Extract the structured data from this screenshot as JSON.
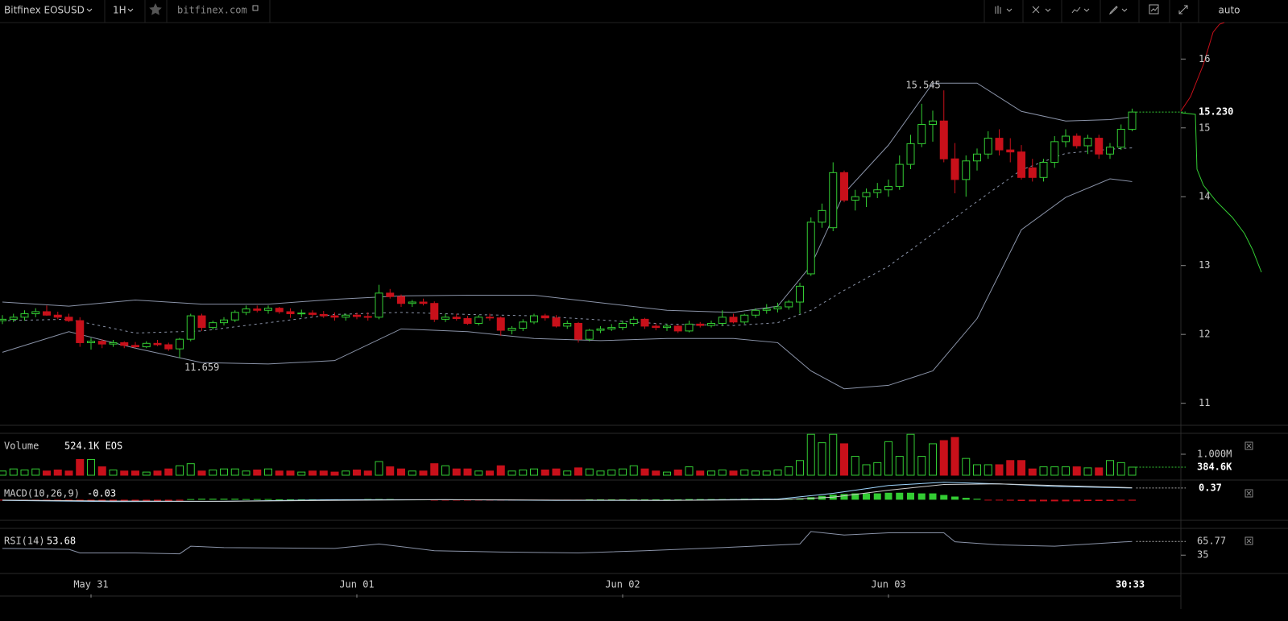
{
  "toolbar": {
    "symbol": "Bitfinex EOSUSD",
    "interval": "1H",
    "site": "bitfinex.com",
    "scale_mode": "auto"
  },
  "chart_data": {
    "type": "candlestick",
    "categories": [
      null,
      null,
      null,
      null,
      null,
      null,
      null,
      null,
      "May 31",
      null,
      null,
      null,
      null,
      null,
      null,
      null,
      null,
      null,
      null,
      null,
      null,
      null,
      null,
      null,
      null,
      null,
      null,
      null,
      null,
      null,
      null,
      null,
      "Jun 01",
      null,
      null,
      null,
      null,
      null,
      null,
      null,
      null,
      null,
      null,
      null,
      null,
      null,
      null,
      null,
      null,
      null,
      null,
      null,
      null,
      null,
      null,
      null,
      "Jun 02",
      null,
      null,
      null,
      null,
      null,
      null,
      null,
      null,
      null,
      null,
      null,
      null,
      null,
      null,
      null,
      null,
      null,
      null,
      null,
      null,
      null,
      null,
      null,
      "Jun 03",
      null,
      null,
      null,
      null,
      null,
      null,
      null,
      null,
      null,
      null,
      null,
      null,
      null,
      null,
      null,
      null,
      null,
      null,
      null,
      null,
      null,
      null
    ],
    "ohlc": [
      [
        12.2,
        12.28,
        12.15,
        12.22
      ],
      [
        12.22,
        12.3,
        12.18,
        12.25
      ],
      [
        12.25,
        12.35,
        12.2,
        12.3
      ],
      [
        12.3,
        12.38,
        12.25,
        12.33
      ],
      [
        12.33,
        12.42,
        12.27,
        12.28
      ],
      [
        12.28,
        12.33,
        12.22,
        12.25
      ],
      [
        12.25,
        12.3,
        12.18,
        12.2
      ],
      [
        12.2,
        12.25,
        11.82,
        11.88
      ],
      [
        11.88,
        11.95,
        11.78,
        11.9
      ],
      [
        11.9,
        11.93,
        11.8,
        11.86
      ],
      [
        11.86,
        11.92,
        11.82,
        11.88
      ],
      [
        11.88,
        11.9,
        11.8,
        11.84
      ],
      [
        11.84,
        11.89,
        11.8,
        11.82
      ],
      [
        11.82,
        11.9,
        11.8,
        11.87
      ],
      [
        11.87,
        11.92,
        11.83,
        11.85
      ],
      [
        11.85,
        11.88,
        11.76,
        11.79
      ],
      [
        11.79,
        11.95,
        11.659,
        11.93
      ],
      [
        11.93,
        12.3,
        11.9,
        12.27
      ],
      [
        12.27,
        12.3,
        12.05,
        12.1
      ],
      [
        12.1,
        12.2,
        12.07,
        12.17
      ],
      [
        12.17,
        12.25,
        12.13,
        12.21
      ],
      [
        12.21,
        12.35,
        12.18,
        12.32
      ],
      [
        12.32,
        12.42,
        12.28,
        12.37
      ],
      [
        12.37,
        12.42,
        12.32,
        12.35
      ],
      [
        12.35,
        12.42,
        12.3,
        12.38
      ],
      [
        12.38,
        12.4,
        12.3,
        12.33
      ],
      [
        12.33,
        12.38,
        12.24,
        12.3
      ],
      [
        12.3,
        12.36,
        12.25,
        12.31
      ],
      [
        12.31,
        12.35,
        12.26,
        12.29
      ],
      [
        12.29,
        12.34,
        12.24,
        12.27
      ],
      [
        12.27,
        12.32,
        12.2,
        12.25
      ],
      [
        12.25,
        12.3,
        12.2,
        12.28
      ],
      [
        12.28,
        12.32,
        12.22,
        12.26
      ],
      [
        12.26,
        12.32,
        12.2,
        12.25
      ],
      [
        12.25,
        12.72,
        12.22,
        12.6
      ],
      [
        12.6,
        12.66,
        12.52,
        12.55
      ],
      [
        12.55,
        12.58,
        12.4,
        12.45
      ],
      [
        12.45,
        12.5,
        12.4,
        12.47
      ],
      [
        12.47,
        12.52,
        12.42,
        12.45
      ],
      [
        12.45,
        12.48,
        12.18,
        12.22
      ],
      [
        12.22,
        12.3,
        12.18,
        12.25
      ],
      [
        12.25,
        12.3,
        12.2,
        12.23
      ],
      [
        12.23,
        12.27,
        12.14,
        12.16
      ],
      [
        12.16,
        12.28,
        12.13,
        12.25
      ],
      [
        12.25,
        12.3,
        12.2,
        12.24
      ],
      [
        12.24,
        12.26,
        11.98,
        12.06
      ],
      [
        12.06,
        12.12,
        12.0,
        12.09
      ],
      [
        12.09,
        12.22,
        12.05,
        12.18
      ],
      [
        12.18,
        12.3,
        12.15,
        12.27
      ],
      [
        12.27,
        12.3,
        12.2,
        12.24
      ],
      [
        12.24,
        12.28,
        12.1,
        12.12
      ],
      [
        12.12,
        12.2,
        12.08,
        12.16
      ],
      [
        12.16,
        12.18,
        11.88,
        11.93
      ],
      [
        11.93,
        12.08,
        11.9,
        12.06
      ],
      [
        12.06,
        12.12,
        12.02,
        12.08
      ],
      [
        12.08,
        12.15,
        12.05,
        12.1
      ],
      [
        12.1,
        12.2,
        12.06,
        12.16
      ],
      [
        12.16,
        12.26,
        12.12,
        12.22
      ],
      [
        12.22,
        12.24,
        12.08,
        12.12
      ],
      [
        12.12,
        12.16,
        12.06,
        12.1
      ],
      [
        12.1,
        12.15,
        12.05,
        12.12
      ],
      [
        12.12,
        12.14,
        12.02,
        12.05
      ],
      [
        12.05,
        12.2,
        12.03,
        12.15
      ],
      [
        12.15,
        12.18,
        12.1,
        12.13
      ],
      [
        12.13,
        12.2,
        12.1,
        12.16
      ],
      [
        12.16,
        12.35,
        12.12,
        12.25
      ],
      [
        12.25,
        12.3,
        12.16,
        12.18
      ],
      [
        12.18,
        12.3,
        12.15,
        12.28
      ],
      [
        12.28,
        12.38,
        12.24,
        12.35
      ],
      [
        12.35,
        12.44,
        12.3,
        12.37
      ],
      [
        12.37,
        12.46,
        12.32,
        12.4
      ],
      [
        12.4,
        12.5,
        12.36,
        12.47
      ],
      [
        12.47,
        12.75,
        12.3,
        12.7
      ],
      [
        12.88,
        13.7,
        12.85,
        13.63
      ],
      [
        13.63,
        13.9,
        13.55,
        13.8
      ],
      [
        13.55,
        14.5,
        13.5,
        14.35
      ],
      [
        14.35,
        14.38,
        13.92,
        13.95
      ],
      [
        13.95,
        14.1,
        13.8,
        14.0
      ],
      [
        14.0,
        14.12,
        13.85,
        14.06
      ],
      [
        14.06,
        14.2,
        13.98,
        14.1
      ],
      [
        14.1,
        14.25,
        14.0,
        14.15
      ],
      [
        14.15,
        14.6,
        14.1,
        14.47
      ],
      [
        14.47,
        14.9,
        14.4,
        14.77
      ],
      [
        14.77,
        15.35,
        14.72,
        15.05
      ],
      [
        15.05,
        15.25,
        14.8,
        15.1
      ],
      [
        15.1,
        15.545,
        14.5,
        14.55
      ],
      [
        14.55,
        14.78,
        14.05,
        14.25
      ],
      [
        14.25,
        14.6,
        14.0,
        14.52
      ],
      [
        14.52,
        14.7,
        14.38,
        14.62
      ],
      [
        14.62,
        14.95,
        14.55,
        14.85
      ],
      [
        14.85,
        14.98,
        14.6,
        14.68
      ],
      [
        14.68,
        14.85,
        14.5,
        14.65
      ],
      [
        14.65,
        14.75,
        14.25,
        14.28
      ],
      [
        14.42,
        14.55,
        14.22,
        14.28
      ],
      [
        14.28,
        14.55,
        14.22,
        14.5
      ],
      [
        14.5,
        14.88,
        14.42,
        14.8
      ],
      [
        14.8,
        14.98,
        14.72,
        14.88
      ],
      [
        14.88,
        14.92,
        14.7,
        14.74
      ],
      [
        14.74,
        14.9,
        14.62,
        14.85
      ],
      [
        14.85,
        14.9,
        14.55,
        14.62
      ],
      [
        14.62,
        14.78,
        14.55,
        14.72
      ],
      [
        14.72,
        15.05,
        14.68,
        14.98
      ],
      [
        14.98,
        15.28,
        14.95,
        15.23
      ]
    ],
    "up_color": "#33cc33",
    "down_color": "#c8101a",
    "ylim": [
      10.68,
      16.53
    ],
    "yticks": [
      11,
      12,
      13,
      14,
      15,
      16
    ],
    "high_label": "15.545",
    "low_label": "11.659",
    "last_price": {
      "value": 15.23,
      "label": "15.230"
    },
    "bands": {
      "x": [
        0,
        6,
        12,
        18,
        24,
        30,
        36,
        42,
        48,
        54,
        60,
        66,
        70,
        73,
        76,
        80,
        84,
        88,
        92,
        96,
        100,
        102
      ],
      "upper": [
        12.47,
        12.41,
        12.5,
        12.44,
        12.44,
        12.51,
        12.56,
        12.57,
        12.57,
        12.46,
        12.35,
        12.32,
        12.41,
        13.0,
        14.05,
        14.75,
        15.65,
        15.65,
        15.24,
        15.1,
        15.12,
        15.16
      ],
      "mid": [
        12.2,
        12.22,
        12.02,
        12.05,
        12.17,
        12.29,
        12.32,
        12.29,
        12.27,
        12.21,
        12.15,
        12.13,
        12.17,
        12.35,
        12.64,
        12.99,
        13.46,
        13.93,
        14.39,
        14.63,
        14.69,
        14.71
      ],
      "lower": [
        11.74,
        12.04,
        11.8,
        11.59,
        11.57,
        11.62,
        12.08,
        12.04,
        11.94,
        11.91,
        11.94,
        11.94,
        11.88,
        11.47,
        11.21,
        11.26,
        11.47,
        12.23,
        13.52,
        13.99,
        14.26,
        14.22
      ]
    },
    "volume": {
      "title": "Volume",
      "current": "524.1K EOS",
      "values": [
        200000,
        300000,
        250000,
        300000,
        200000,
        250000,
        200000,
        750000,
        750000,
        400000,
        250000,
        200000,
        200000,
        150000,
        200000,
        300000,
        450000,
        550000,
        200000,
        250000,
        300000,
        300000,
        200000,
        250000,
        300000,
        200000,
        200000,
        150000,
        200000,
        200000,
        150000,
        200000,
        250000,
        200000,
        650000,
        400000,
        300000,
        200000,
        200000,
        550000,
        450000,
        300000,
        300000,
        200000,
        200000,
        450000,
        200000,
        250000,
        300000,
        250000,
        300000,
        200000,
        350000,
        300000,
        200000,
        250000,
        300000,
        450000,
        300000,
        200000,
        150000,
        250000,
        400000,
        200000,
        200000,
        250000,
        200000,
        250000,
        200000,
        200000,
        250000,
        400000,
        700000,
        1950000,
        1550000,
        1950000,
        1500000,
        900000,
        500000,
        600000,
        1600000,
        900000,
        1950000,
        900000,
        1500000,
        1650000,
        1800000,
        800000,
        500000,
        500000,
        500000,
        700000,
        700000,
        300000,
        400000,
        400000,
        400000,
        400000,
        350000,
        350000,
        700000,
        600000,
        384600
      ],
      "ylim": [
        0,
        1920000
      ],
      "yticks": [
        {
          "value": 1000000,
          "label": "1.000M"
        }
      ],
      "last": {
        "value": 384600,
        "label": "384.6K"
      }
    },
    "macd": {
      "title": "MACD(10,26,9)",
      "current": -0.03,
      "histogram": [
        -0.02,
        -0.02,
        -0.02,
        -0.02,
        -0.03,
        -0.03,
        -0.03,
        -0.04,
        -0.05,
        -0.05,
        -0.05,
        -0.05,
        -0.04,
        -0.04,
        -0.04,
        -0.04,
        -0.03,
        0.02,
        0.03,
        0.03,
        0.03,
        0.03,
        0.02,
        0.02,
        0.02,
        0.01,
        0.01,
        0.01,
        0.01,
        0.01,
        0.01,
        0.01,
        0.01,
        0.02,
        0.02,
        0.02,
        0.01,
        0.01,
        0.01,
        -0.01,
        -0.01,
        -0.01,
        -0.01,
        -0.02,
        -0.02,
        -0.02,
        -0.01,
        -0.01,
        -0.01,
        -0.02,
        -0.02,
        -0.01,
        -0.01,
        0.01,
        0.01,
        0.01,
        0.01,
        0.01,
        0.01,
        0.01,
        0.01,
        0.01,
        0.02,
        0.02,
        0.02,
        0.02,
        0.02,
        0.03,
        0.03,
        0.03,
        0.03,
        0.03,
        0.04,
        0.08,
        0.12,
        0.16,
        0.18,
        0.2,
        0.2,
        0.2,
        0.22,
        0.22,
        0.22,
        0.2,
        0.2,
        0.15,
        0.1,
        0.06,
        0.03,
        -0.01,
        -0.02,
        -0.03,
        -0.04,
        -0.05,
        -0.05,
        -0.05,
        -0.05,
        -0.05,
        -0.04,
        -0.04,
        -0.04,
        -0.03,
        -0.03
      ],
      "x": [
        0,
        10,
        20,
        30,
        40,
        50,
        60,
        70,
        75,
        80,
        85,
        90,
        95,
        102
      ],
      "line": [
        -0.02,
        -0.06,
        -0.05,
        0,
        0,
        -0.02,
        -0.02,
        0.02,
        0.2,
        0.45,
        0.55,
        0.5,
        0.42,
        0.37
      ],
      "signal": [
        -0.01,
        -0.04,
        -0.05,
        -0.02,
        0,
        -0.01,
        -0.02,
        0,
        0.08,
        0.3,
        0.48,
        0.5,
        0.45,
        0.38
      ],
      "ylim": [
        -0.65,
        0.57
      ],
      "last": 0.37
    },
    "rsi": {
      "title": "RSI(14)",
      "current": 53.68,
      "x": [
        0,
        6,
        7,
        12,
        16,
        17,
        20,
        30,
        34,
        39,
        45,
        52,
        58,
        65,
        72,
        73,
        76,
        80,
        85,
        86,
        90,
        95,
        102
      ],
      "values": [
        50,
        48,
        40,
        40,
        38,
        55,
        52,
        50,
        60,
        45,
        42,
        40,
        45,
        52,
        60,
        88,
        80,
        85,
        85,
        65,
        58,
        55,
        65.77
      ],
      "ylim": [
        -2.5,
        95
      ],
      "yticks": [
        35
      ],
      "last": 65.77
    },
    "time_label": "30:33"
  }
}
